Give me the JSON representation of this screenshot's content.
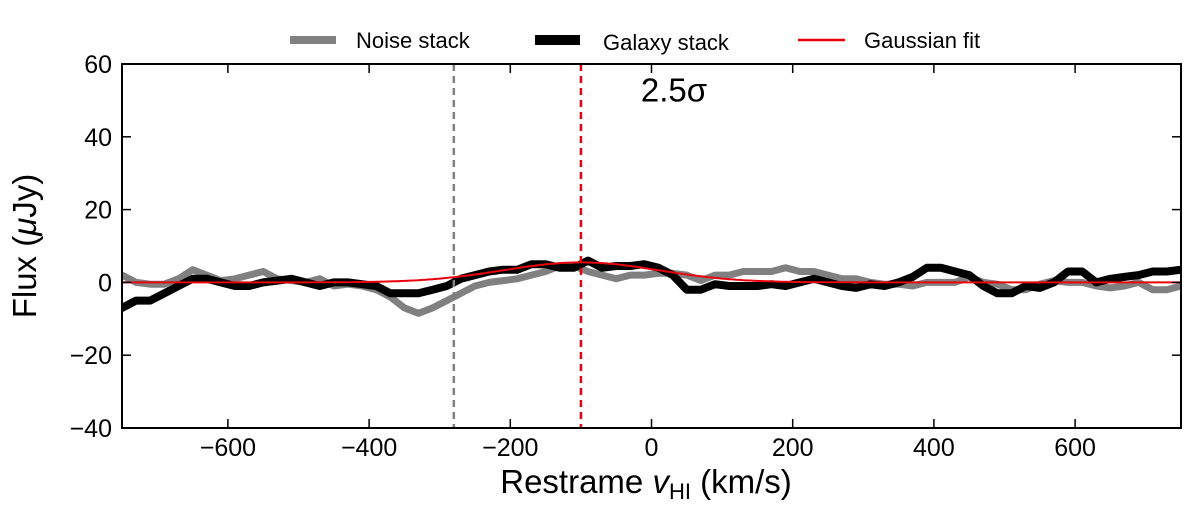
{
  "chart_data": {
    "type": "line",
    "title": "",
    "xlabel": "Restrame v_HI (km/s)",
    "xlabel_parts": {
      "main": "Restrame ",
      "var": "v",
      "sub": "HI",
      "unit": " (km/s)"
    },
    "ylabel": "Flux (µJy)",
    "ylabel_parts": {
      "main": "Flux (",
      "var": "μ",
      "unit": "Jy)"
    },
    "xlim": [
      -750,
      750
    ],
    "ylim": [
      -40,
      60
    ],
    "xticks": [
      -600,
      -400,
      -200,
      0,
      200,
      400,
      600
    ],
    "yticks": [
      -40,
      -20,
      0,
      20,
      40,
      60
    ],
    "xtick_labels": [
      "−600",
      "−400",
      "−200",
      "0",
      "200",
      "400",
      "600"
    ],
    "ytick_labels": [
      "−40",
      "−20",
      "0",
      "20",
      "40",
      "60"
    ],
    "grid": false,
    "legend_position": "top-center (above axes)",
    "annotation": {
      "text": "2.5σ",
      "x": -15,
      "y": 53
    },
    "vlines": [
      {
        "name": "noise-peak-marker",
        "x": -280,
        "color": "#808080",
        "style": "dashed"
      },
      {
        "name": "galaxy-peak-marker",
        "x": -100,
        "color": "#e8000b",
        "style": "dashed"
      }
    ],
    "series": [
      {
        "name": "Noise stack",
        "color": "#808080",
        "x": [
          -750,
          -730,
          -710,
          -690,
          -670,
          -650,
          -630,
          -610,
          -590,
          -570,
          -550,
          -530,
          -510,
          -490,
          -470,
          -450,
          -430,
          -410,
          -390,
          -370,
          -350,
          -330,
          -310,
          -290,
          -270,
          -250,
          -230,
          -210,
          -190,
          -170,
          -150,
          -130,
          -110,
          -90,
          -70,
          -50,
          -30,
          -10,
          10,
          30,
          50,
          70,
          90,
          110,
          130,
          150,
          170,
          190,
          210,
          230,
          250,
          270,
          290,
          310,
          330,
          350,
          370,
          390,
          410,
          430,
          450,
          470,
          490,
          510,
          530,
          550,
          570,
          590,
          610,
          630,
          650,
          670,
          690,
          710,
          730,
          750
        ],
        "y": [
          2,
          0,
          -0.5,
          -0.5,
          1,
          3.5,
          2,
          0.5,
          1,
          2,
          3,
          1,
          0.5,
          0,
          1,
          -1,
          -0.5,
          -1,
          -2,
          -4,
          -7,
          -8.5,
          -7,
          -5,
          -3,
          -1,
          0,
          0.5,
          1,
          2,
          3,
          4.5,
          4.5,
          3,
          2,
          1,
          2,
          2,
          2.5,
          2.5,
          2,
          0.5,
          2,
          2,
          3,
          3,
          3,
          4,
          3,
          3,
          2,
          1,
          1,
          0,
          -0.5,
          -0.5,
          -1,
          0,
          0,
          0,
          1.5,
          0,
          -0.5,
          -2,
          -2,
          -0.5,
          0.5,
          0,
          0,
          -1,
          -1.5,
          -1,
          0,
          -2,
          -2,
          -1
        ]
      },
      {
        "name": "Galaxy stack",
        "color": "#000000",
        "x": [
          -750,
          -730,
          -710,
          -690,
          -670,
          -650,
          -630,
          -610,
          -590,
          -570,
          -550,
          -530,
          -510,
          -490,
          -470,
          -450,
          -430,
          -410,
          -390,
          -370,
          -350,
          -330,
          -310,
          -290,
          -270,
          -250,
          -230,
          -210,
          -190,
          -170,
          -150,
          -130,
          -110,
          -90,
          -70,
          -50,
          -30,
          -10,
          10,
          30,
          50,
          70,
          90,
          110,
          130,
          150,
          170,
          190,
          210,
          230,
          250,
          270,
          290,
          310,
          330,
          350,
          370,
          390,
          410,
          430,
          450,
          470,
          490,
          510,
          530,
          550,
          570,
          590,
          610,
          630,
          650,
          670,
          690,
          710,
          730,
          750
        ],
        "y": [
          -7,
          -5,
          -5,
          -3,
          -1,
          1,
          1,
          0,
          -1,
          -1,
          0,
          0.5,
          1,
          0,
          -1,
          0,
          0,
          -0.5,
          -1,
          -3,
          -3,
          -3,
          -2,
          -1,
          1,
          2,
          3,
          3.5,
          3.5,
          5,
          5,
          4,
          4,
          6,
          4,
          4.5,
          4.5,
          5,
          4,
          2,
          -2,
          -2,
          -0.5,
          -1,
          -1,
          -1,
          -0.5,
          -1,
          0,
          1,
          0,
          -1,
          -1.5,
          -0.5,
          -1,
          0,
          1.5,
          4,
          4,
          3,
          2,
          -1,
          -3,
          -3,
          -1,
          -1.5,
          0,
          3,
          3,
          0,
          1,
          1.5,
          2,
          3,
          3,
          3.5
        ]
      },
      {
        "name": "Gaussian fit",
        "color": "#e8000b",
        "type": "gaussian",
        "amplitude": 5.5,
        "center": -100,
        "sigma": 110
      }
    ]
  }
}
